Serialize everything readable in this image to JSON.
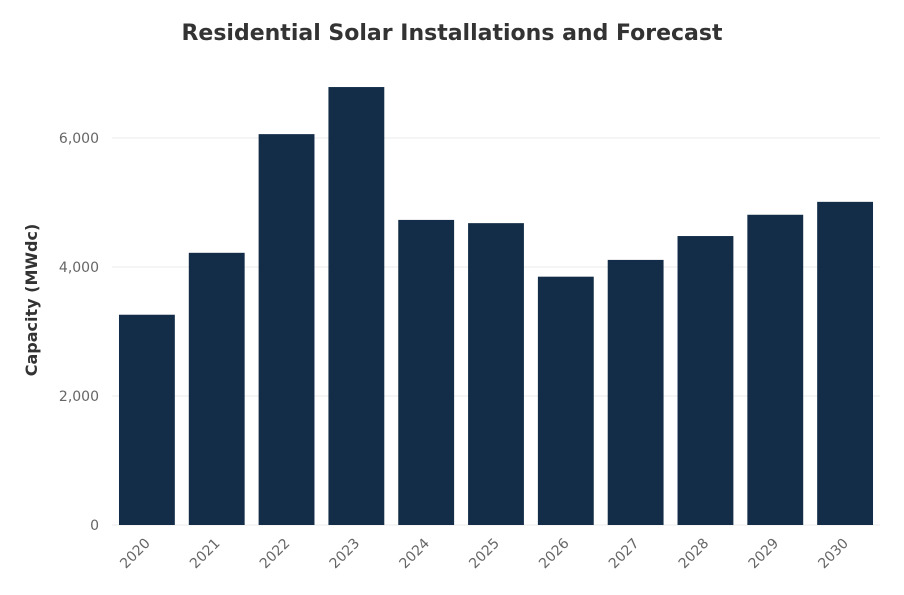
{
  "chart_data": {
    "type": "bar",
    "title": "Residential Solar Installations and Forecast",
    "xlabel": "",
    "ylabel": "Capacity (MWdc)",
    "categories": [
      "2020",
      "2021",
      "2022",
      "2023",
      "2024",
      "2025",
      "2026",
      "2027",
      "2028",
      "2029",
      "2030"
    ],
    "values": [
      3260,
      4220,
      6060,
      6790,
      4730,
      4680,
      3850,
      4110,
      4480,
      4810,
      5010
    ],
    "ylim": [
      0,
      7000
    ],
    "yticks": [
      0,
      2000,
      4000,
      6000
    ],
    "ytick_labels": [
      "0",
      "2,000",
      "4,000",
      "6,000"
    ],
    "grid": true,
    "legend": "none",
    "colors": {
      "bar": "#132d48",
      "grid": "#ebebeb",
      "text": "#333333",
      "tick": "#666666"
    }
  }
}
